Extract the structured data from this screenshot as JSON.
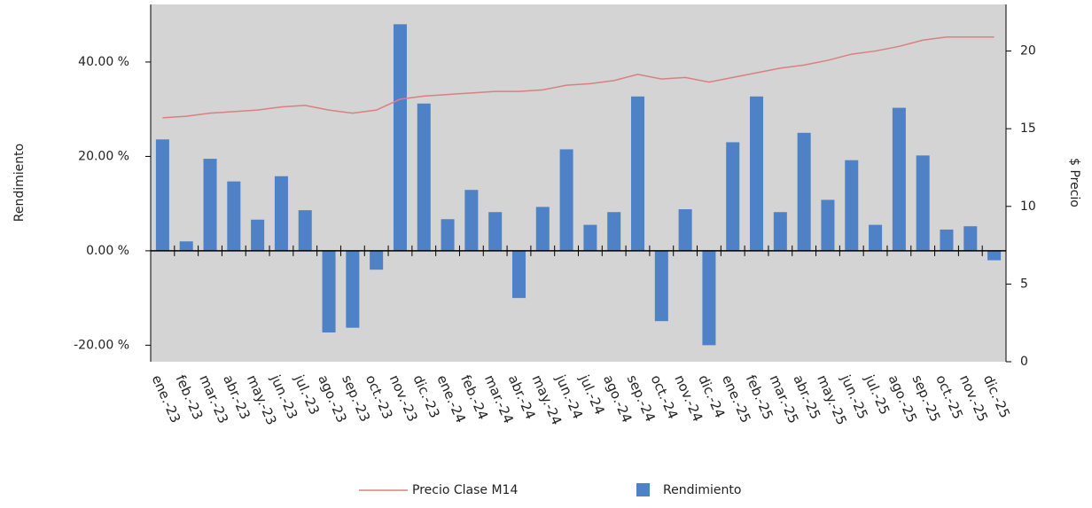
{
  "chart_data": {
    "type": "combo",
    "ylabel": "Rendimiento",
    "y2label": "$ Precio",
    "categories": [
      "ene.-23",
      "feb.-23",
      "mar.-23",
      "abr.-23",
      "may.-23",
      "jun.-23",
      "jul.-23",
      "ago.-23",
      "sep.-23",
      "oct.-23",
      "nov.-23",
      "dic.-23",
      "ene.-24",
      "feb.-24",
      "mar.-24",
      "abr.-24",
      "may.-24",
      "jun.-24",
      "jul.-24",
      "ago.-24",
      "sep.-24",
      "oct.-24",
      "nov.-24",
      "dic.-24",
      "ene.-25",
      "feb.-25",
      "mar.-25",
      "abr.-25",
      "may.-25",
      "jun.-25",
      "jul.-25",
      "ago.-25",
      "sep.-25",
      "oct.-25",
      "nov.-25",
      "dic.-25"
    ],
    "series": [
      {
        "name": "Precio Clase M14",
        "type": "line",
        "axis": "y2",
        "color": "#d98080",
        "values": [
          15.7,
          15.8,
          16.0,
          16.1,
          16.2,
          16.4,
          16.5,
          16.2,
          16.0,
          16.2,
          16.9,
          17.1,
          17.2,
          17.3,
          17.4,
          17.4,
          17.5,
          17.8,
          17.9,
          18.1,
          18.5,
          18.2,
          18.3,
          18.0,
          18.3,
          18.6,
          18.9,
          19.1,
          19.4,
          19.8,
          20.0,
          20.3,
          20.7,
          20.9,
          20.9,
          20.9
        ]
      },
      {
        "name": "Rendimiento",
        "type": "bar",
        "color": "#4f81c7",
        "values": [
          23.6,
          2,
          19.5,
          14.7,
          6.6,
          15.8,
          8.6,
          -17.3,
          -16.3,
          -4,
          48,
          31.2,
          6.7,
          12.9,
          8.2,
          -10,
          9.3,
          21.5,
          5.5,
          8.2,
          32.7,
          -14.9,
          8.8,
          -20,
          23,
          32.7,
          8.2,
          25,
          10.8,
          19.2,
          5.5,
          30.3,
          20.2,
          4.5,
          5.2,
          -2
        ]
      }
    ],
    "ylim": [
      -23.5,
      52.2
    ],
    "yticks": [
      {
        "value": -20,
        "label": "-20.00 %"
      },
      {
        "value": 0,
        "label": "0.00 %"
      },
      {
        "value": 20,
        "label": "20.00 %"
      },
      {
        "value": 40,
        "label": "40.00 %"
      }
    ],
    "y2lim": [
      0,
      23
    ],
    "y2ticks": [
      0,
      5,
      10,
      15,
      20
    ],
    "plot_background": "#d4d4d4",
    "legend": "bottom"
  }
}
